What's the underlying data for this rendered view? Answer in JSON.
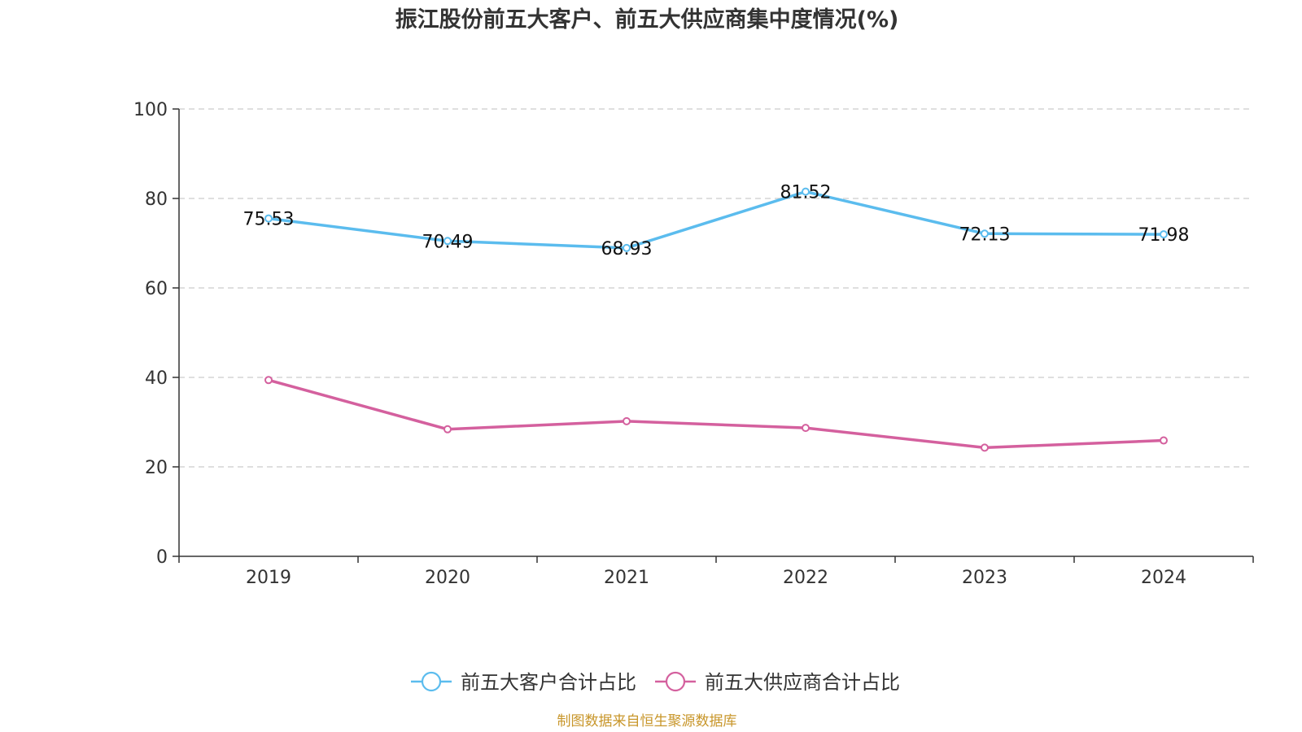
{
  "chart_data": {
    "type": "line",
    "title": "振江股份前五大客户、前五大供应商集中度情况(%)",
    "categories": [
      "2019",
      "2020",
      "2021",
      "2022",
      "2023",
      "2024"
    ],
    "series": [
      {
        "name": "前五大客户合计占比",
        "values": [
          75.53,
          70.49,
          68.93,
          81.52,
          72.13,
          71.98
        ],
        "data_labels": [
          "75.53",
          "70.49",
          "68.93",
          "81.52",
          "72.13",
          "71.98"
        ],
        "color": "#5bbcee"
      },
      {
        "name": "前五大供应商合计占比",
        "values": [
          39.4,
          28.4,
          30.2,
          28.7,
          24.3,
          25.9
        ],
        "color": "#d4609e"
      }
    ],
    "y_ticks": [
      "0",
      "20",
      "40",
      "60",
      "80",
      "100"
    ],
    "ylim": [
      0,
      100
    ],
    "grid": true,
    "legend_position": "bottom",
    "source": "制图数据来自恒生聚源数据库"
  }
}
